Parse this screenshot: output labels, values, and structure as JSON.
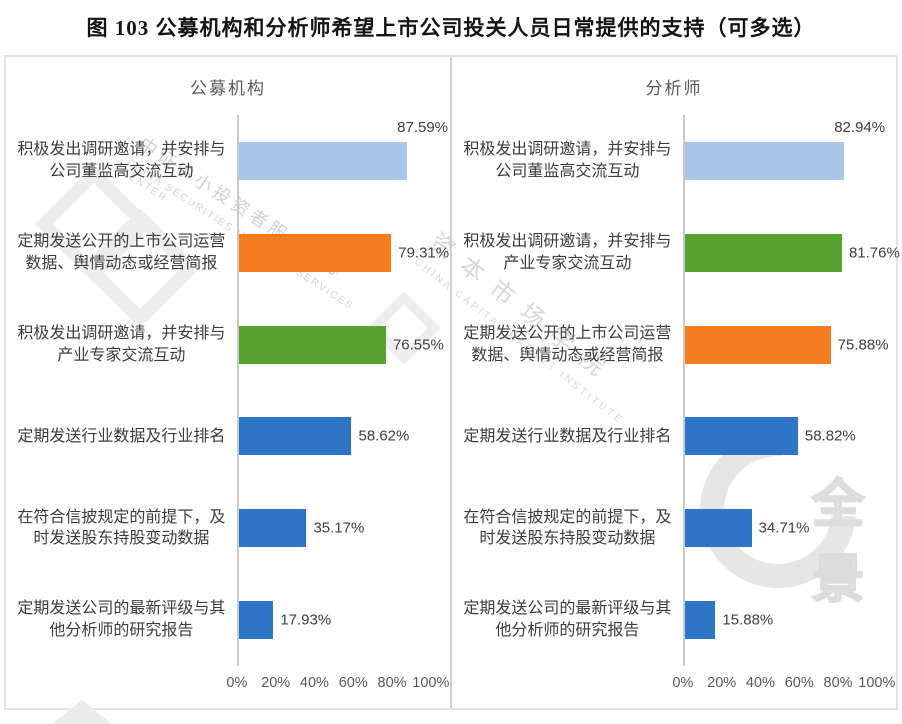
{
  "page": {
    "title": "图 103  公募机构和分析师希望上市公司投关人员日常提供的支持（可多选）"
  },
  "chart_data": [
    {
      "type": "bar",
      "orientation": "horizontal",
      "title": "公募机构",
      "categories": [
        "积极发出调研邀请，并安排与公司董监高交流互动",
        "定期发送公开的上市公司运营数据、舆情动态或经营简报",
        "积极发出调研邀请，并安排与产业专家交流互动",
        "定期发送行业数据及行业排名",
        "在符合信披规定的前提下，及时发送股东持股变动数据",
        "定期发送公司的最新评级与其他分析师的研究报告"
      ],
      "values": [
        87.59,
        79.31,
        76.55,
        58.62,
        35.17,
        17.93
      ],
      "value_labels": [
        "87.59%",
        "79.31%",
        "76.55%",
        "58.62%",
        "35.17%",
        "17.93%"
      ],
      "bar_colors": [
        "#a9c5e8",
        "#f57b1f",
        "#58a32f",
        "#2e75c6",
        "#2e75c6",
        "#2e75c6"
      ],
      "xlim": [
        0,
        100
      ],
      "x_ticks": [
        "0%",
        "20%",
        "40%",
        "60%",
        "80%",
        "100%"
      ],
      "grid": false,
      "legend": null
    },
    {
      "type": "bar",
      "orientation": "horizontal",
      "title": "分析师",
      "categories": [
        "积极发出调研邀请，并安排与公司董监高交流互动",
        "积极发出调研邀请，并安排与产业专家交流互动",
        "定期发送公开的上市公司运营数据、舆情动态或经营简报",
        "定期发送行业数据及行业排名",
        "在符合信披规定的前提下，及时发送股东持股变动数据",
        "定期发送公司的最新评级与其他分析师的研究报告"
      ],
      "values": [
        82.94,
        81.76,
        75.88,
        58.82,
        34.71,
        15.88
      ],
      "value_labels": [
        "82.94%",
        "81.76%",
        "75.88%",
        "58.82%",
        "34.71%",
        "15.88%"
      ],
      "bar_colors": [
        "#a9c5e8",
        "#58a32f",
        "#f57b1f",
        "#2e75c6",
        "#2e75c6",
        "#2e75c6"
      ],
      "xlim": [
        0,
        100
      ],
      "x_ticks": [
        "0%",
        "20%",
        "40%",
        "60%",
        "80%",
        "100%"
      ],
      "grid": false,
      "legend": null
    }
  ],
  "watermarks": {
    "zz_cn": "中证中小投资者服务中心",
    "zz_en": "CHINA SECURITIES INVESTOR SERVICES CENTER",
    "cap_cn": "资本市场学院",
    "cap_en": "CHINA CAPITAL MARKET INSTITUTE",
    "qj": "全景"
  },
  "colors": {
    "light_blue": "#a9c5e8",
    "orange": "#f57b1f",
    "green": "#58a32f",
    "blue": "#2e75c6"
  }
}
